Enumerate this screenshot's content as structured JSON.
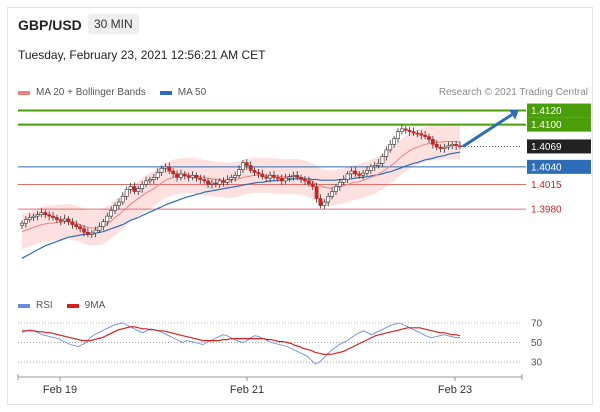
{
  "header": {
    "pair": "GBP/USD",
    "timeframe": "30 MIN",
    "datetime": "Tuesday, February 23, 2021 12:56:21 AM CET"
  },
  "legend": {
    "ma20_bb": "MA 20 + Bollinger Bands",
    "ma50": "MA 50",
    "credit": "Research © 2021 Trading Central"
  },
  "rsi_legend": {
    "rsi": "RSI",
    "ma9": "9MA"
  },
  "colors": {
    "up": "#5fba2c",
    "ma20": "#f08080",
    "bb_fill": "#fde0e0",
    "ma50": "#2e6db5",
    "resistance": "#4a9e0a",
    "support_blue": "#2e6db5",
    "support_red": "#e07070",
    "price": "#222222",
    "arrow": "#2e6db5"
  },
  "chart_data": [
    {
      "type": "candlestick",
      "title": "GBP/USD",
      "x_ticks": [
        "Feb 19",
        "Feb 21",
        "Feb 23"
      ],
      "ylim": [
        1.3865,
        1.4135
      ],
      "levels": [
        {
          "label": "1.4120",
          "value": 1.412,
          "kind": "resistance"
        },
        {
          "label": "1.4100",
          "value": 1.41,
          "kind": "resistance"
        },
        {
          "label": "1.4069",
          "value": 1.4069,
          "kind": "price"
        },
        {
          "label": "1.4040",
          "value": 1.404,
          "kind": "pivot"
        },
        {
          "label": "1.4015",
          "value": 1.4015,
          "kind": "support"
        },
        {
          "label": "1.3980",
          "value": 1.398,
          "kind": "support"
        }
      ],
      "closes": [
        1.396,
        1.3965,
        1.3968,
        1.397,
        1.3972,
        1.3975,
        1.3972,
        1.397,
        1.3968,
        1.3965,
        1.3963,
        1.3966,
        1.3962,
        1.3958,
        1.3955,
        1.3952,
        1.3947,
        1.3944,
        1.3946,
        1.395,
        1.3955,
        1.3962,
        1.397,
        1.3978,
        1.3985,
        1.399,
        1.3998,
        1.4008,
        1.4012,
        1.4005,
        1.4009,
        1.4015,
        1.402,
        1.4022,
        1.4025,
        1.4032,
        1.4038,
        1.404,
        1.4034,
        1.403,
        1.4025,
        1.403,
        1.4027,
        1.4025,
        1.4028,
        1.4024,
        1.4022,
        1.402,
        1.4015,
        1.4017,
        1.4015,
        1.402,
        1.4018,
        1.4022,
        1.4025,
        1.4028,
        1.4036,
        1.4046,
        1.4042,
        1.4035,
        1.4032,
        1.403,
        1.4026,
        1.4024,
        1.4028,
        1.4025,
        1.4024,
        1.402,
        1.4024,
        1.4026,
        1.4028,
        1.4025,
        1.4022,
        1.402,
        1.4016,
        1.4012,
        1.3995,
        1.3985,
        1.399,
        1.3998,
        1.4005,
        1.4012,
        1.4018,
        1.4022,
        1.403,
        1.4034,
        1.403,
        1.4028,
        1.4031,
        1.4035,
        1.404,
        1.4042,
        1.4045,
        1.4055,
        1.4064,
        1.4072,
        1.408,
        1.409,
        1.4094,
        1.4092,
        1.409,
        1.4088,
        1.4087,
        1.4085,
        1.4083,
        1.4079,
        1.4072,
        1.4068,
        1.4066,
        1.4068,
        1.407,
        1.4072,
        1.407,
        1.4069
      ],
      "ma20": [
        1.3948,
        1.395,
        1.3952,
        1.3954,
        1.3956,
        1.3958,
        1.3959,
        1.396,
        1.396,
        1.3961,
        1.3961,
        1.3962,
        1.3962,
        1.3961,
        1.396,
        1.3958,
        1.3956,
        1.3954,
        1.3953,
        1.3953,
        1.3954,
        1.3956,
        1.3959,
        1.3963,
        1.3968,
        1.3972,
        1.3977,
        1.3982,
        1.3987,
        1.3991,
        1.3995,
        1.3999,
        1.4003,
        1.4006,
        1.4009,
        1.4013,
        1.4017,
        1.4021,
        1.4023,
        1.4025,
        1.4026,
        1.4027,
        1.4028,
        1.4028,
        1.4028,
        1.4027,
        1.4026,
        1.4025,
        1.4024,
        1.4023,
        1.4022,
        1.4022,
        1.4021,
        1.4021,
        1.4021,
        1.4022,
        1.4023,
        1.4025,
        1.4026,
        1.4027,
        1.4028,
        1.4028,
        1.4028,
        1.4028,
        1.4028,
        1.4027,
        1.4027,
        1.4026,
        1.4026,
        1.4026,
        1.4026,
        1.4026,
        1.4025,
        1.4024,
        1.4022,
        1.4019,
        1.4016,
        1.4013,
        1.4011,
        1.401,
        1.401,
        1.4011,
        1.4012,
        1.4013,
        1.4015,
        1.4017,
        1.4018,
        1.4019,
        1.4021,
        1.4023,
        1.4025,
        1.4027,
        1.403,
        1.4033,
        1.4037,
        1.4041,
        1.4045,
        1.405,
        1.4055,
        1.4059,
        1.4063,
        1.4066,
        1.4068,
        1.407,
        1.4072,
        1.4073,
        1.4074,
        1.4075,
        1.4075,
        1.4076,
        1.4076,
        1.4076,
        1.4076,
        1.4075
      ],
      "ma50": [
        1.391,
        1.3913,
        1.3916,
        1.3919,
        1.3922,
        1.3925,
        1.3928,
        1.393,
        1.3932,
        1.3934,
        1.3936,
        1.3938,
        1.394,
        1.3941,
        1.3942,
        1.3943,
        1.3944,
        1.3944,
        1.3945,
        1.3946,
        1.3947,
        1.3948,
        1.395,
        1.3952,
        1.3954,
        1.3956,
        1.3958,
        1.3961,
        1.3964,
        1.3966,
        1.3968,
        1.3971,
        1.3973,
        1.3976,
        1.3978,
        1.3981,
        1.3983,
        1.3986,
        1.3988,
        1.399,
        1.3992,
        1.3994,
        1.3996,
        1.3998,
        1.3999,
        1.4001,
        1.4002,
        1.4004,
        1.4005,
        1.4006,
        1.4007,
        1.4008,
        1.4009,
        1.401,
        1.4011,
        1.4012,
        1.4013,
        1.4014,
        1.4015,
        1.4016,
        1.4017,
        1.4018,
        1.4018,
        1.4019,
        1.402,
        1.402,
        1.4021,
        1.4021,
        1.4022,
        1.4022,
        1.4023,
        1.4023,
        1.4023,
        1.4023,
        1.4023,
        1.4022,
        1.4022,
        1.4021,
        1.4021,
        1.4021,
        1.4021,
        1.4021,
        1.4022,
        1.4022,
        1.4023,
        1.4023,
        1.4024,
        1.4025,
        1.4025,
        1.4026,
        1.4027,
        1.4028,
        1.4029,
        1.403,
        1.4032,
        1.4033,
        1.4035,
        1.4037,
        1.4039,
        1.4041,
        1.4043,
        1.4045,
        1.4046,
        1.4048,
        1.405,
        1.4051,
        1.4052,
        1.4054,
        1.4055,
        1.4056,
        1.4058,
        1.4059,
        1.406,
        1.4061
      ],
      "bb_width": 0.0025,
      "target_arrow": {
        "from": 1.4069,
        "to": 1.412
      }
    },
    {
      "type": "line",
      "title": "RSI",
      "y_ticks": [
        70,
        50,
        30
      ],
      "ylim": [
        20,
        75
      ],
      "series": [
        {
          "name": "RSI",
          "values": [
            60,
            62,
            63,
            62,
            60,
            58,
            57,
            56,
            55,
            54,
            52,
            50,
            48,
            47,
            46,
            48,
            50,
            55,
            58,
            60,
            62,
            64,
            66,
            68,
            69,
            70,
            68,
            66,
            64,
            62,
            60,
            62,
            64,
            63,
            62,
            60,
            58,
            56,
            54,
            52,
            50,
            52,
            51,
            50,
            49,
            48,
            50,
            52,
            54,
            56,
            58,
            57,
            55,
            53,
            51,
            50,
            52,
            55,
            57,
            56,
            54,
            52,
            50,
            49,
            48,
            47,
            46,
            44,
            42,
            40,
            38,
            36,
            32,
            28,
            30,
            34,
            38,
            42,
            45,
            48,
            50,
            52,
            55,
            58,
            60,
            62,
            60,
            58,
            60,
            62,
            64,
            66,
            68,
            69,
            70,
            68,
            66,
            64,
            62,
            60,
            58,
            56,
            55,
            56,
            57,
            58,
            57,
            56,
            55,
            55
          ]
        },
        {
          "name": "9MA",
          "values": [
            62,
            62,
            62,
            62,
            61,
            61,
            60,
            60,
            59,
            58,
            57,
            56,
            55,
            54,
            53,
            52,
            52,
            52,
            53,
            54,
            55,
            57,
            59,
            61,
            63,
            64,
            65,
            66,
            66,
            65,
            64,
            64,
            63,
            63,
            62,
            62,
            61,
            60,
            59,
            58,
            57,
            56,
            55,
            54,
            53,
            52,
            52,
            52,
            52,
            52,
            53,
            53,
            54,
            54,
            54,
            54,
            54,
            54,
            54,
            54,
            54,
            53,
            53,
            52,
            51,
            51,
            50,
            49,
            47,
            46,
            44,
            43,
            42,
            40,
            39,
            38,
            38,
            38,
            39,
            40,
            41,
            43,
            45,
            47,
            49,
            51,
            53,
            55,
            57,
            58,
            59,
            60,
            61,
            62,
            63,
            64,
            65,
            65,
            65,
            65,
            64,
            63,
            62,
            61,
            60,
            60,
            59,
            58,
            58,
            57
          ]
        }
      ]
    }
  ]
}
